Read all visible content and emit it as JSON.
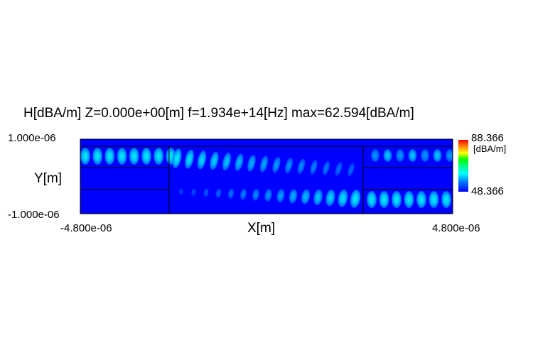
{
  "chart_data": {
    "type": "heatmap",
    "title": "H[dBA/m] Z=0.000e+00[m] f=1.934e+14[Hz] max=62.594[dBA/m]",
    "xlabel": "X[m]",
    "ylabel": "Y[m]",
    "x_ticks": [
      "-4.800e-06",
      "4.800e-06"
    ],
    "y_ticks": [
      "1.000e-06",
      "-1.000e-06"
    ],
    "xlim": [
      -4.8e-06,
      4.8e-06
    ],
    "ylim": [
      -1e-06,
      1e-06
    ],
    "colorbar": {
      "max_label": "88.366",
      "min_label": "48.366",
      "unit": "[dBA/m]",
      "range": [
        48.366,
        88.366
      ],
      "colors": [
        "#0000ff",
        "#0080ff",
        "#00ffff",
        "#00ff80",
        "#00ff00",
        "#ffff00",
        "#ff8000",
        "#ff0000"
      ]
    },
    "background_color": "#0000ff",
    "field_pattern": "coupled waveguide modes: upper-left guide transfers to lower-right guide"
  }
}
